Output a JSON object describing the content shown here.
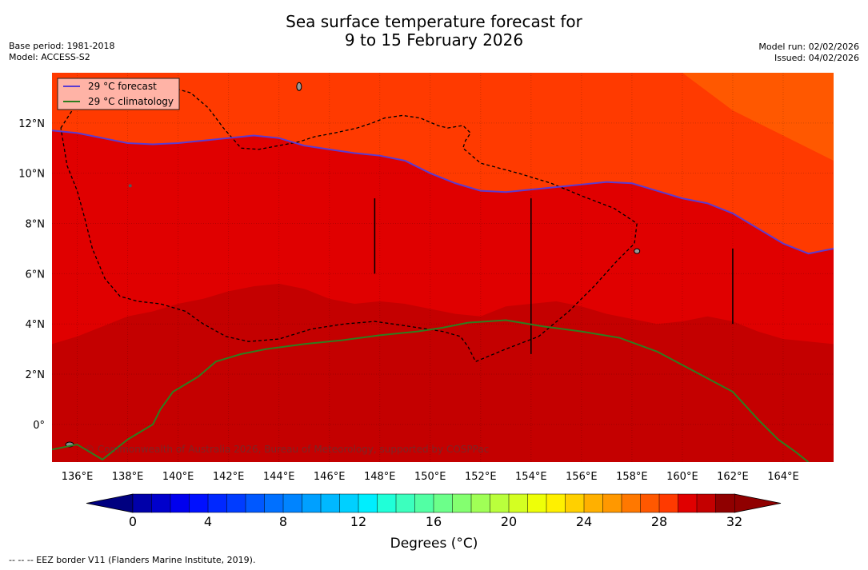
{
  "header": {
    "title_line1": "Sea surface temperature forecast for",
    "title_line2": "9 to 15 February 2026",
    "base_period": "Base period: 1981-2018",
    "model": "Model: ACCESS-S2",
    "model_run": "Model run: 02/02/2026",
    "issued": "Issued: 04/02/2026"
  },
  "chart_data": {
    "type": "heatmap",
    "title": "Sea surface temperature forecast for 9 to 15 February 2026",
    "variable": "Sea surface temperature",
    "units": "°C",
    "x_axis": {
      "range_deg": [
        135.0,
        166.0
      ],
      "ticks": [
        136,
        138,
        140,
        142,
        144,
        146,
        148,
        150,
        152,
        154,
        156,
        158,
        160,
        162,
        164
      ],
      "tick_labels": [
        "136°E",
        "138°E",
        "140°E",
        "142°E",
        "144°E",
        "146°E",
        "148°E",
        "150°E",
        "152°E",
        "154°E",
        "156°E",
        "158°E",
        "160°E",
        "162°E",
        "164°E"
      ]
    },
    "y_axis": {
      "range_deg": [
        -1.5,
        14.0
      ],
      "ticks": [
        0,
        2,
        4,
        6,
        8,
        10,
        12
      ],
      "tick_labels": [
        "0°",
        "2°N",
        "4°N",
        "6°N",
        "8°N",
        "10°N",
        "12°N"
      ]
    },
    "grid": true,
    "field_zones": [
      {
        "name": "coolest-northeast",
        "range_c": [
          28,
          29
        ]
      },
      {
        "name": "north-band",
        "range_c": [
          29,
          30
        ]
      },
      {
        "name": "central-band",
        "range_c": [
          30,
          31
        ]
      },
      {
        "name": "southern-warm-pool",
        "range_c": [
          31,
          32
        ]
      }
    ],
    "field_boundaries": {
      "zone_28_29": {
        "lon": [
          160,
          162,
          164,
          166
        ],
        "lat": [
          14,
          12.5,
          11.5,
          10.5
        ]
      },
      "zone_29_30_forecast_29C": {
        "lon": [
          135,
          136,
          137,
          138,
          139,
          140,
          141,
          142,
          143,
          144,
          145,
          146,
          147,
          148,
          149,
          150,
          151,
          152,
          153,
          154,
          155,
          156,
          157,
          158,
          159,
          160,
          161,
          162,
          163,
          164,
          165,
          166
        ],
        "lat": [
          11.7,
          11.6,
          11.4,
          11.2,
          11.15,
          11.2,
          11.3,
          11.4,
          11.5,
          11.4,
          11.1,
          10.95,
          10.8,
          10.7,
          10.5,
          10.0,
          9.6,
          9.3,
          9.25,
          9.35,
          9.45,
          9.55,
          9.65,
          9.6,
          9.3,
          9.0,
          8.8,
          8.4,
          7.8,
          7.2,
          6.8,
          7.0
        ]
      },
      "zone_30_31": {
        "lon": [
          135,
          136,
          137,
          138,
          139,
          140,
          141,
          142,
          143,
          144,
          145,
          146,
          147,
          148,
          149,
          150,
          151,
          152,
          153,
          154,
          155,
          156,
          157,
          158,
          159,
          160,
          161,
          162,
          163,
          164,
          165,
          166
        ],
        "lat": [
          3.2,
          3.5,
          3.9,
          4.3,
          4.5,
          4.8,
          5.0,
          5.3,
          5.5,
          5.6,
          5.4,
          5.0,
          4.8,
          4.9,
          4.8,
          4.6,
          4.4,
          4.3,
          4.7,
          4.8,
          4.9,
          4.7,
          4.4,
          4.2,
          4.0,
          4.1,
          4.3,
          4.1,
          3.7,
          3.4,
          3.3,
          3.2
        ]
      }
    },
    "series": [
      {
        "name": "29 °C  forecast",
        "color": "#5b3bd1",
        "lon": [
          135,
          136,
          137,
          138,
          139,
          140,
          141,
          142,
          143,
          144,
          145,
          146,
          147,
          148,
          149,
          150,
          151,
          152,
          153,
          154,
          155,
          156,
          157,
          158,
          159,
          160,
          161,
          162,
          163,
          164,
          165,
          166
        ],
        "lat": [
          11.7,
          11.6,
          11.4,
          11.2,
          11.15,
          11.2,
          11.3,
          11.4,
          11.5,
          11.4,
          11.1,
          10.95,
          10.8,
          10.7,
          10.5,
          10.0,
          9.6,
          9.3,
          9.25,
          9.35,
          9.45,
          9.55,
          9.65,
          9.6,
          9.3,
          9.0,
          8.8,
          8.4,
          7.8,
          7.2,
          6.8,
          7.0
        ]
      },
      {
        "name": "29 °C  climatology",
        "color": "#2e7d1e",
        "lon": [
          135,
          136,
          137,
          138,
          139,
          139.3,
          139.8,
          140.8,
          141.5,
          142.5,
          143.5,
          145,
          146.5,
          148,
          149.5,
          150.5,
          151.5,
          153,
          154.5,
          156,
          157.5,
          159,
          160.5,
          162,
          163,
          163.8,
          164.5,
          165
        ],
        "lat": [
          -1.0,
          -0.8,
          -1.4,
          -0.6,
          0.0,
          0.6,
          1.3,
          1.9,
          2.5,
          2.8,
          3.0,
          3.2,
          3.35,
          3.55,
          3.7,
          3.85,
          4.05,
          4.15,
          3.9,
          3.7,
          3.45,
          2.9,
          2.1,
          1.3,
          0.2,
          -0.6,
          -1.1,
          -1.5
        ]
      }
    ],
    "legend": {
      "position": "top-left",
      "entries": [
        "29 °C  forecast",
        "29 °C  climatology"
      ]
    },
    "attribution": "© Commonwealth of Australia 2026, Bureau of Meteorology, supported by COSPPac",
    "eez_boundary": {
      "name": "EEZ border V11",
      "lon": [
        135.35,
        135.8,
        136.2,
        136.7,
        137.4,
        138.2,
        139.0,
        139.8,
        140.5,
        141.2,
        141.8,
        142.5,
        143.2,
        144.0,
        144.8,
        145.4,
        146.2,
        147.1,
        147.7,
        148.2,
        148.9,
        149.6,
        150.3,
        150.7,
        151.3,
        151.6,
        151.4,
        151.3,
        152.0,
        153.5,
        154.8,
        156.0,
        157.3,
        158.2,
        158.1,
        157.4,
        156.5,
        155.5,
        154.3,
        153.0,
        151.8,
        151.5,
        151.2,
        150.5,
        149.2,
        147.8,
        146.6,
        145.3,
        144.0,
        142.8,
        141.9,
        141.0,
        140.3,
        139.3,
        138.4,
        137.7,
        137.1,
        136.6,
        136.3,
        136.0,
        135.6,
        135.35
      ],
      "lat": [
        11.8,
        12.5,
        13.0,
        13.3,
        13.45,
        13.5,
        13.5,
        13.4,
        13.2,
        12.6,
        11.8,
        11.0,
        10.95,
        11.1,
        11.25,
        11.45,
        11.6,
        11.8,
        12.0,
        12.2,
        12.3,
        12.2,
        11.9,
        11.8,
        11.9,
        11.6,
        11.3,
        11.0,
        10.4,
        10.0,
        9.6,
        9.1,
        8.6,
        8.0,
        7.2,
        6.5,
        5.5,
        4.5,
        3.5,
        3.0,
        2.5,
        3.1,
        3.5,
        3.7,
        3.9,
        4.1,
        4.0,
        3.8,
        3.4,
        3.3,
        3.5,
        4.0,
        4.5,
        4.8,
        4.9,
        5.1,
        5.8,
        7.0,
        8.2,
        9.3,
        10.3,
        11.8
      ]
    },
    "colorbar": {
      "label": "Degrees (°C)",
      "range": [
        0,
        32
      ],
      "step": 1,
      "tick_values": [
        0,
        4,
        8,
        12,
        16,
        20,
        24,
        28,
        32
      ],
      "tick_labels": [
        "0",
        "4",
        "8",
        "12",
        "16",
        "20",
        "24",
        "28",
        "32"
      ],
      "colors": [
        "#000080",
        "#0000a9",
        "#0000cc",
        "#0000ee",
        "#0010ff",
        "#0028ff",
        "#003cff",
        "#0058ff",
        "#0070ff",
        "#0084ff",
        "#00a0ff",
        "#00b8ff",
        "#00d0ff",
        "#00eefe",
        "#20ffd8",
        "#3cffbe",
        "#52ffa4",
        "#6cff8a",
        "#84ff70",
        "#a0ff56",
        "#baff3c",
        "#d4ff22",
        "#eeff08",
        "#fff000",
        "#ffd000",
        "#ffb000",
        "#ff9800",
        "#ff7800",
        "#ff5800",
        "#ff3a00",
        "#e00000",
        "#c40000",
        "#900000"
      ]
    }
  },
  "footer": {
    "eez_note": "--  --  -- EEZ border V11 (Flanders Marine Institute, 2019)."
  }
}
